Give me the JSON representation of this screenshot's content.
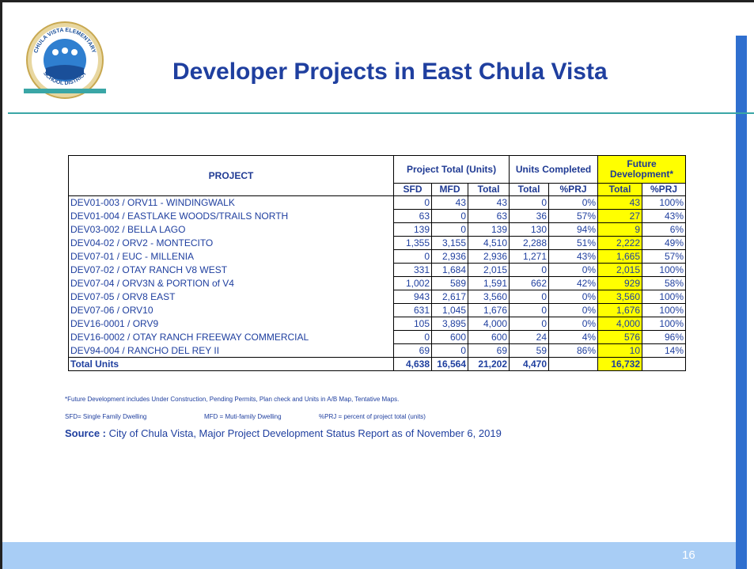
{
  "header": {
    "title": "Developer Projects in East Chula Vista",
    "page_number": "16"
  },
  "logo": {
    "top_text": "CHULA VISTA ELEMENTARY",
    "bottom_text": "SCHOOL DISTRICT"
  },
  "table": {
    "group_headers": [
      "PROJECT",
      "Project Total (Units)",
      "Units Completed",
      "Future Development*"
    ],
    "sub_headers": [
      "SFD",
      "MFD",
      "Total",
      "Total",
      "%PRJ",
      "Total",
      "%PRJ"
    ],
    "rows": [
      [
        "DEV01-003 / ORV11 - WINDINGWALK",
        "0",
        "43",
        "43",
        "0",
        "0%",
        "43",
        "100%"
      ],
      [
        "DEV01-004 / EASTLAKE WOODS/TRAILS NORTH",
        "63",
        "0",
        "63",
        "36",
        "57%",
        "27",
        "43%"
      ],
      [
        "DEV03-002 / BELLA LAGO",
        "139",
        "0",
        "139",
        "130",
        "94%",
        "9",
        "6%"
      ],
      [
        "DEV04-02 / ORV2 - MONTECITO",
        "1,355",
        "3,155",
        "4,510",
        "2,288",
        "51%",
        "2,222",
        "49%"
      ],
      [
        "DEV07-01 / EUC - MILLENIA",
        "0",
        "2,936",
        "2,936",
        "1,271",
        "43%",
        "1,665",
        "57%"
      ],
      [
        "DEV07-02 / OTAY RANCH V8 WEST",
        "331",
        "1,684",
        "2,015",
        "0",
        "0%",
        "2,015",
        "100%"
      ],
      [
        "DEV07-04 / ORV3N & PORTION of V4",
        "1,002",
        "589",
        "1,591",
        "662",
        "42%",
        "929",
        "58%"
      ],
      [
        "DEV07-05 / ORV8 EAST",
        "943",
        "2,617",
        "3,560",
        "0",
        "0%",
        "3,560",
        "100%"
      ],
      [
        "DEV07-06 / ORV10",
        "631",
        "1,045",
        "1,676",
        "0",
        "0%",
        "1,676",
        "100%"
      ],
      [
        "DEV16-0001 / ORV9",
        "105",
        "3,895",
        "4,000",
        "0",
        "0%",
        "4,000",
        "100%"
      ],
      [
        "DEV16-0002 / OTAY RANCH FREEWAY COMMERCIAL",
        "0",
        "600",
        "600",
        "24",
        "4%",
        "576",
        "96%"
      ],
      [
        "DEV94-004 / RANCHO DEL REY II",
        "69",
        "0",
        "69",
        "59",
        "86%",
        "10",
        "14%"
      ]
    ],
    "total": {
      "label": "Total Units",
      "sfd": "4,638",
      "mfd": "16,564",
      "total": "21,202",
      "completed": "4,470",
      "future": "16,732"
    }
  },
  "notes": {
    "footnote": "*Future Development includes Under Construction, Pending Permits, Plan check and Units in A/B Map,  Tentative Maps.",
    "sfd_def": "SFD= Single Family Dwelling",
    "mfd_def": "MFD = Muti-family Dwelling",
    "prj_def": "%PRJ = percent of project total (units)",
    "source_label": "Source :",
    "source_text": "City of Chula Vista, Major Project Development Status Report as of November 6, 2019"
  }
}
